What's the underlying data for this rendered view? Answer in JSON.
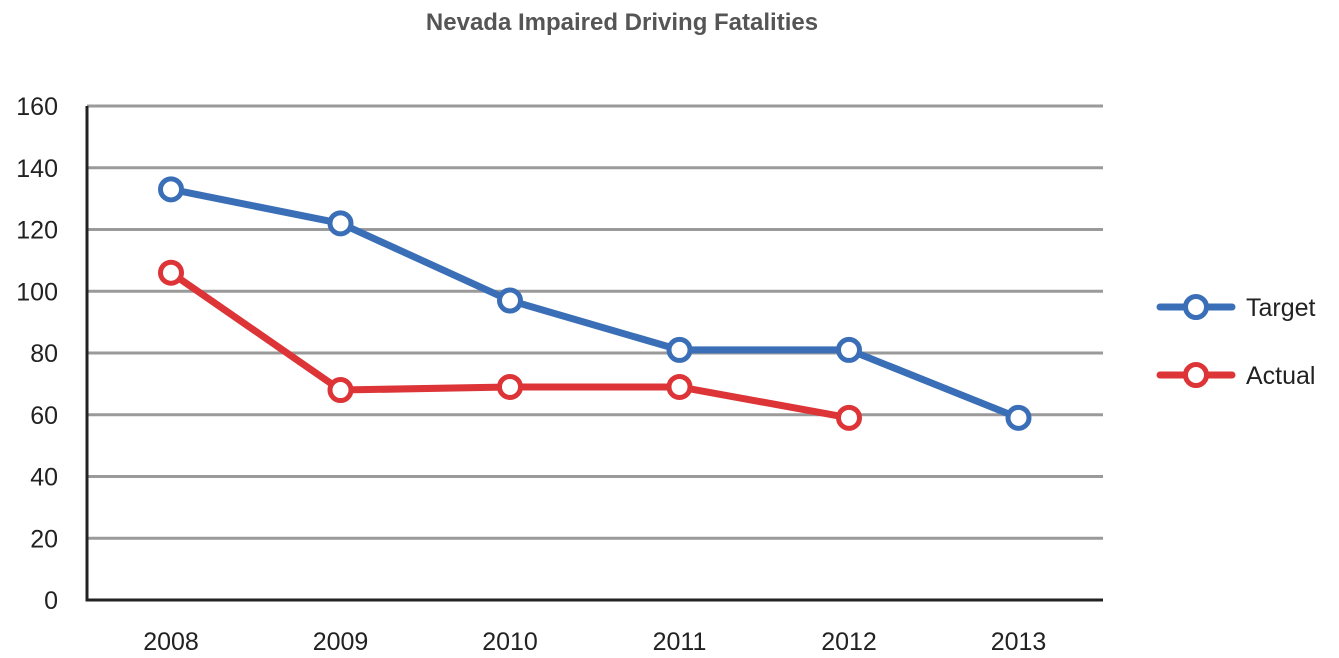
{
  "chart_data": {
    "type": "line",
    "title": "Nevada Impaired Driving Fatalities",
    "xlabel": "",
    "ylabel": "",
    "categories": [
      "2008",
      "2009",
      "2010",
      "2011",
      "2012",
      "2013"
    ],
    "yticks": [
      "0",
      "20",
      "40",
      "60",
      "80",
      "100",
      "120",
      "140",
      "160"
    ],
    "ylim": [
      0,
      160
    ],
    "grid": true,
    "legend_position": "right",
    "series": [
      {
        "name": "Target",
        "color": "#3a6fb7",
        "values": [
          133,
          122,
          97,
          81,
          81,
          59
        ]
      },
      {
        "name": "Actual",
        "color": "#dc3437",
        "values": [
          106,
          68,
          69,
          69,
          59,
          null
        ]
      }
    ]
  }
}
